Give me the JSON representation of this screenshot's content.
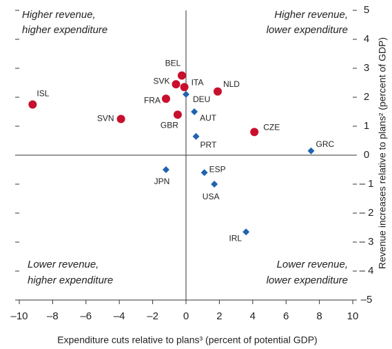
{
  "chart_data": {
    "type": "scatter",
    "xlabel": "Expenditure cuts relative to plans³ (percent of potential GDP)",
    "ylabel": "Revenue increases relative to plans² (percent of GDP)",
    "annotations": [
      [
        "Higher revenue,",
        "higher expenditure"
      ],
      [
        "Higher revenue,",
        "lower expenditure"
      ],
      [
        "Lower revenue,",
        "higher expenditure"
      ],
      [
        "Lower revenue,",
        "lower expenditure"
      ]
    ],
    "xlim": [
      -10,
      10
    ],
    "ylim": [
      -5,
      5
    ],
    "xticks": [
      {
        "value": -10,
        "label": "–10"
      },
      {
        "value": -8,
        "label": "–8"
      },
      {
        "value": -6,
        "label": "–6"
      },
      {
        "value": -4,
        "label": "–4"
      },
      {
        "value": -2,
        "label": "–2"
      },
      0,
      2,
      4,
      6,
      8,
      10
    ],
    "yticks": [
      {
        "value": -5,
        "label": "–5"
      },
      {
        "value": -4,
        "label": "– 4"
      },
      {
        "value": -3,
        "label": "– 3"
      },
      {
        "value": -2,
        "label": "– 2"
      },
      {
        "value": -1,
        "label": "– 1"
      },
      0,
      1,
      2,
      3,
      4,
      5
    ],
    "series": [
      {
        "color": "#c8102e",
        "marker": "circle",
        "labels": [
          "ISL",
          "SVN",
          "FRA",
          "GBR",
          "SVK",
          "BEL",
          "ITA",
          "NLD",
          "CZE"
        ],
        "x": [
          -9.2,
          -3.9,
          -1.2,
          -0.5,
          -0.6,
          -0.25,
          -0.1,
          1.9,
          4.1
        ],
        "values": [
          1.75,
          1.25,
          1.95,
          1.4,
          2.45,
          2.75,
          2.35,
          2.2,
          0.8
        ]
      },
      {
        "color": "#1f63b0",
        "marker": "diamond",
        "labels": [
          "DEU",
          "AUT",
          "PRT",
          "GRC",
          "JPN",
          "ESP",
          "USA",
          "IRL"
        ],
        "x": [
          0.0,
          0.5,
          0.6,
          7.5,
          -1.2,
          1.1,
          1.7,
          3.6
        ],
        "values": [
          2.1,
          1.5,
          0.65,
          0.15,
          -0.5,
          -0.6,
          -1.0,
          -2.65
        ]
      }
    ]
  }
}
